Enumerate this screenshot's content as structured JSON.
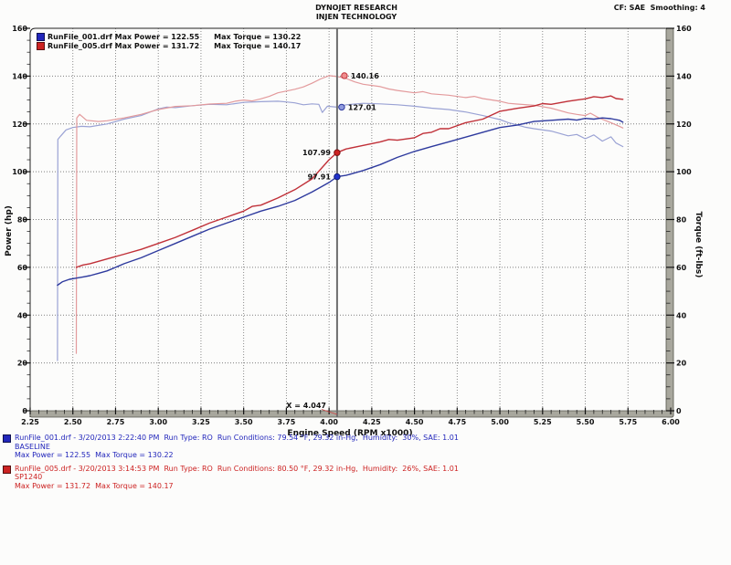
{
  "header": {
    "title_line1": "DYNOJET RESEARCH",
    "title_line2": "INJEN TECHNOLOGY",
    "cf_label": "CF: SAE  Smoothing: 4"
  },
  "legend": {
    "rows": [
      {
        "swatch": "#2226bb",
        "file_power": "RunFile_001.drf Max Power = 122.55",
        "torque": "Max Torque = 130.22"
      },
      {
        "swatch": "#cc2222",
        "file_power": "RunFile_005.drf Max Power = 131.72",
        "torque": "Max Torque = 140.17"
      }
    ]
  },
  "cursor": {
    "label": "X = 4.047",
    "rpm": 4.047
  },
  "markers": [
    {
      "label": "140.16",
      "value": 140.16,
      "series": "torque_red",
      "side": "right",
      "dx": 8,
      "dot_fill": "#ef8d8d",
      "dot_stroke": "#c03038"
    },
    {
      "label": "127.01",
      "value": 127.01,
      "series": "torque_blue",
      "side": "right",
      "dx": 5,
      "dot_fill": "#8f9ade",
      "dot_stroke": "#2e3a9e"
    },
    {
      "label": "107.99",
      "value": 107.99,
      "series": "power_red",
      "side": "left",
      "dx": 0,
      "dot_fill": "#cc2222",
      "dot_stroke": "#7a1010"
    },
    {
      "label": "97.91",
      "value": 97.91,
      "series": "power_blue",
      "side": "left",
      "dx": 0,
      "dot_fill": "#2233cc",
      "dot_stroke": "#101c7a"
    }
  ],
  "colors": {
    "power_blue": "#2e3a9e",
    "torque_blue": "#9aa2d4",
    "power_red": "#c03038",
    "torque_red": "#e39a9c",
    "cursor": "#6e6e6e",
    "axis_bar": "#a8a79d",
    "axis_bar_edge": "#55554d",
    "grid": "#555555",
    "pointer_line": "#cc4444"
  },
  "chart_data": {
    "type": "line",
    "title": "DYNOJET RESEARCH",
    "subtitle": "INJEN TECHNOLOGY",
    "xlabel": "Engine Speed (RPM x1000)",
    "ylabel_left": "Power (hp)",
    "ylabel_right": "Torque (ft-lbs)",
    "xlim": [
      2.25,
      6.0
    ],
    "ylim": [
      0,
      160
    ],
    "x_tick_labels": [
      "2.25",
      "2.50",
      "2.75",
      "3.00",
      "3.25",
      "3.50",
      "3.75",
      "4.00",
      "4.25",
      "4.50",
      "4.75",
      "5.00",
      "5.25",
      "5.50",
      "5.75",
      "6.00"
    ],
    "x_tick_values": [
      2.25,
      2.5,
      2.75,
      3.0,
      3.25,
      3.5,
      3.75,
      4.0,
      4.25,
      4.5,
      4.75,
      5.0,
      5.25,
      5.5,
      5.75,
      6.0
    ],
    "y_tick_labels": [
      "0",
      "20",
      "40",
      "60",
      "80",
      "100",
      "120",
      "140",
      "160"
    ],
    "y_tick_values": [
      0,
      20,
      40,
      60,
      80,
      100,
      120,
      140,
      160
    ],
    "x_minor_step": 0.05,
    "y_minor_step": 5,
    "grid": "dotted",
    "series": [
      {
        "key": "torque_blue",
        "name": "BASELINE Torque (RunFile_001.drf)",
        "max": 130.22,
        "width": 1.2,
        "points": [
          [
            2.41,
            21
          ],
          [
            2.412,
            113.5
          ],
          [
            2.43,
            115
          ],
          [
            2.46,
            117.5
          ],
          [
            2.5,
            118.5
          ],
          [
            2.55,
            119
          ],
          [
            2.6,
            118.8
          ],
          [
            2.7,
            120
          ],
          [
            2.8,
            122
          ],
          [
            2.9,
            123.5
          ],
          [
            3.0,
            126.3
          ],
          [
            3.05,
            127
          ],
          [
            3.1,
            126.8
          ],
          [
            3.2,
            127.6
          ],
          [
            3.3,
            128.2
          ],
          [
            3.4,
            128
          ],
          [
            3.5,
            129
          ],
          [
            3.6,
            129.3
          ],
          [
            3.7,
            129.5
          ],
          [
            3.75,
            129.2
          ],
          [
            3.8,
            128.8
          ],
          [
            3.85,
            128
          ],
          [
            3.9,
            128.4
          ],
          [
            3.94,
            128.2
          ],
          [
            3.96,
            124.8
          ],
          [
            3.99,
            127.4
          ],
          [
            4.047,
            127.0
          ],
          [
            4.1,
            128
          ],
          [
            4.2,
            128.6
          ],
          [
            4.3,
            128.4
          ],
          [
            4.4,
            128
          ],
          [
            4.5,
            127.4
          ],
          [
            4.6,
            126.6
          ],
          [
            4.7,
            126
          ],
          [
            4.8,
            125
          ],
          [
            4.9,
            123.5
          ],
          [
            5.0,
            121.8
          ],
          [
            5.05,
            120.5
          ],
          [
            5.1,
            119.6
          ],
          [
            5.15,
            118.6
          ],
          [
            5.2,
            118
          ],
          [
            5.3,
            117
          ],
          [
            5.35,
            116
          ],
          [
            5.4,
            115
          ],
          [
            5.45,
            115.6
          ],
          [
            5.5,
            113.8
          ],
          [
            5.55,
            115.4
          ],
          [
            5.6,
            112.8
          ],
          [
            5.65,
            114.6
          ],
          [
            5.68,
            112
          ],
          [
            5.72,
            110.5
          ]
        ]
      },
      {
        "key": "torque_red",
        "name": "SP1240 Torque (RunFile_005.drf)",
        "max": 140.17,
        "width": 1.2,
        "points": [
          [
            2.52,
            24
          ],
          [
            2.523,
            122.5
          ],
          [
            2.54,
            124
          ],
          [
            2.58,
            121.5
          ],
          [
            2.65,
            121
          ],
          [
            2.7,
            121.3
          ],
          [
            2.8,
            122.5
          ],
          [
            2.9,
            124
          ],
          [
            3.0,
            126
          ],
          [
            3.1,
            127.3
          ],
          [
            3.2,
            127.6
          ],
          [
            3.3,
            128.3
          ],
          [
            3.4,
            128.6
          ],
          [
            3.45,
            129.5
          ],
          [
            3.5,
            130
          ],
          [
            3.55,
            129.6
          ],
          [
            3.6,
            130.5
          ],
          [
            3.65,
            131.5
          ],
          [
            3.7,
            133
          ],
          [
            3.8,
            134.5
          ],
          [
            3.85,
            135.5
          ],
          [
            3.9,
            137
          ],
          [
            3.95,
            138.8
          ],
          [
            4.0,
            140.2
          ],
          [
            4.05,
            139.8
          ],
          [
            4.1,
            139
          ],
          [
            4.15,
            137.6
          ],
          [
            4.2,
            136.6
          ],
          [
            4.3,
            135.6
          ],
          [
            4.35,
            134.6
          ],
          [
            4.4,
            134
          ],
          [
            4.5,
            133
          ],
          [
            4.55,
            133.5
          ],
          [
            4.6,
            132.6
          ],
          [
            4.7,
            132
          ],
          [
            4.8,
            131
          ],
          [
            4.85,
            131.5
          ],
          [
            4.9,
            130.6
          ],
          [
            5.0,
            129.5
          ],
          [
            5.05,
            128.6
          ],
          [
            5.1,
            128.3
          ],
          [
            5.2,
            127.8
          ],
          [
            5.3,
            126.6
          ],
          [
            5.35,
            125.6
          ],
          [
            5.4,
            124.6
          ],
          [
            5.45,
            124
          ],
          [
            5.5,
            123.5
          ],
          [
            5.53,
            124.5
          ],
          [
            5.58,
            122.5
          ],
          [
            5.65,
            120.5
          ],
          [
            5.7,
            119
          ],
          [
            5.72,
            118.3
          ]
        ]
      },
      {
        "key": "power_blue",
        "name": "BASELINE Power (RunFile_001.drf)",
        "max": 122.55,
        "width": 1.4,
        "points": [
          [
            2.41,
            52.5
          ],
          [
            2.44,
            54
          ],
          [
            2.48,
            55
          ],
          [
            2.52,
            55.5
          ],
          [
            2.56,
            56
          ],
          [
            2.6,
            56.5
          ],
          [
            2.65,
            57.5
          ],
          [
            2.7,
            58.5
          ],
          [
            2.75,
            60
          ],
          [
            2.8,
            61.5
          ],
          [
            2.9,
            64
          ],
          [
            3.0,
            67
          ],
          [
            3.1,
            70
          ],
          [
            3.2,
            73
          ],
          [
            3.3,
            76
          ],
          [
            3.4,
            78.5
          ],
          [
            3.5,
            81
          ],
          [
            3.6,
            83.5
          ],
          [
            3.7,
            85.5
          ],
          [
            3.8,
            88
          ],
          [
            3.9,
            91.5
          ],
          [
            3.95,
            93.5
          ],
          [
            4.0,
            95.5
          ],
          [
            4.047,
            97.9
          ],
          [
            4.1,
            98.5
          ],
          [
            4.2,
            100.5
          ],
          [
            4.3,
            103
          ],
          [
            4.4,
            106
          ],
          [
            4.5,
            108.5
          ],
          [
            4.6,
            110.5
          ],
          [
            4.7,
            112.5
          ],
          [
            4.8,
            114.5
          ],
          [
            4.9,
            116.5
          ],
          [
            5.0,
            118.5
          ],
          [
            5.1,
            119.5
          ],
          [
            5.2,
            121
          ],
          [
            5.3,
            121.5
          ],
          [
            5.4,
            122
          ],
          [
            5.45,
            121.6
          ],
          [
            5.5,
            122.3
          ],
          [
            5.55,
            122
          ],
          [
            5.6,
            122.5
          ],
          [
            5.65,
            122.2
          ],
          [
            5.7,
            121.5
          ],
          [
            5.72,
            120.7
          ]
        ]
      },
      {
        "key": "power_red",
        "name": "SP1240 Power (RunFile_005.drf)",
        "max": 131.72,
        "width": 1.4,
        "points": [
          [
            2.52,
            60
          ],
          [
            2.56,
            61
          ],
          [
            2.6,
            61.5
          ],
          [
            2.65,
            62.5
          ],
          [
            2.7,
            63.5
          ],
          [
            2.75,
            64.5
          ],
          [
            2.8,
            65.5
          ],
          [
            2.9,
            67.5
          ],
          [
            3.0,
            70
          ],
          [
            3.1,
            72.5
          ],
          [
            3.2,
            75.5
          ],
          [
            3.3,
            78.5
          ],
          [
            3.4,
            81
          ],
          [
            3.5,
            83.5
          ],
          [
            3.55,
            85.5
          ],
          [
            3.6,
            86
          ],
          [
            3.7,
            89
          ],
          [
            3.8,
            92.5
          ],
          [
            3.9,
            97
          ],
          [
            3.95,
            101
          ],
          [
            4.0,
            105
          ],
          [
            4.047,
            108.0
          ],
          [
            4.1,
            109.5
          ],
          [
            4.2,
            111
          ],
          [
            4.3,
            112.5
          ],
          [
            4.35,
            113.5
          ],
          [
            4.4,
            113.2
          ],
          [
            4.5,
            114.2
          ],
          [
            4.55,
            116
          ],
          [
            4.6,
            116.5
          ],
          [
            4.65,
            118
          ],
          [
            4.7,
            118
          ],
          [
            4.8,
            120.5
          ],
          [
            4.9,
            122
          ],
          [
            5.0,
            125.3
          ],
          [
            5.1,
            126.5
          ],
          [
            5.2,
            127.5
          ],
          [
            5.25,
            128.5
          ],
          [
            5.3,
            128.2
          ],
          [
            5.4,
            129.5
          ],
          [
            5.45,
            130
          ],
          [
            5.5,
            130.5
          ],
          [
            5.55,
            131.4
          ],
          [
            5.6,
            131
          ],
          [
            5.65,
            131.7
          ],
          [
            5.68,
            130.6
          ],
          [
            5.72,
            130.3
          ]
        ]
      }
    ]
  },
  "footer": {
    "runs": [
      {
        "swatch": "#2226bb",
        "line1": "RunFile_001.drf - 3/20/2013 2:22:40 PM  Run Type: RO  Run Conditions: 79.54 °F, 29.32 in-Hg,  Humidity:  30%, SAE: 1.01",
        "line2": "BASELINE",
        "line3": "Max Power = 122.55  Max Torque = 130.22"
      },
      {
        "swatch": "#cc2222",
        "line1": "RunFile_005.drf - 3/20/2013 3:14:53 PM  Run Type: RO  Run Conditions: 80.50 °F, 29.32 in-Hg,  Humidity:  26%, SAE: 1.01",
        "line2": "SP1240",
        "line3": "Max Power = 131.72  Max Torque = 140.17"
      }
    ]
  }
}
